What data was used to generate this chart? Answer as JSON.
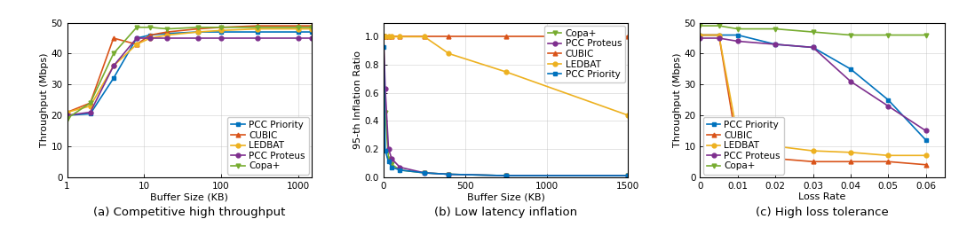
{
  "fig1": {
    "xlabel": "Buffer Size (KB)",
    "ylabel": "Throughput (Mbps)",
    "ylim": [
      0,
      50
    ],
    "yticks": [
      0,
      10,
      20,
      30,
      40,
      50
    ],
    "series": {
      "PCC Priority": {
        "x": [
          1,
          2,
          4,
          8,
          12,
          20,
          50,
          100,
          300,
          1000,
          1500
        ],
        "y": [
          20,
          20.5,
          32,
          45,
          46,
          46.5,
          47,
          47,
          47,
          47,
          47
        ],
        "color": "#0072BD",
        "marker": "s"
      },
      "CUBIC": {
        "x": [
          1,
          2,
          4,
          8,
          12,
          20,
          50,
          100,
          300,
          1000,
          1500
        ],
        "y": [
          21,
          24,
          45,
          43,
          46,
          47,
          48,
          48.5,
          49,
          49,
          49
        ],
        "color": "#D95319",
        "marker": "^"
      },
      "LEDBAT": {
        "x": [
          1,
          2,
          4,
          8,
          12,
          20,
          50,
          100,
          300,
          1000,
          1500
        ],
        "y": [
          21,
          23,
          36,
          43,
          45,
          46,
          47,
          47.5,
          48,
          48,
          48
        ],
        "color": "#EDB120",
        "marker": "o"
      },
      "PCC Proteus": {
        "x": [
          1,
          2,
          4,
          8,
          12,
          20,
          50,
          100,
          300,
          1000,
          1500
        ],
        "y": [
          20,
          21,
          36,
          45,
          45,
          45,
          45,
          45,
          45,
          45,
          45
        ],
        "color": "#7E2F8E",
        "marker": "o"
      },
      "Copa+": {
        "x": [
          1,
          2,
          4,
          8,
          12,
          20,
          50,
          100,
          300,
          1000,
          1500
        ],
        "y": [
          19,
          24,
          40,
          48.5,
          48.5,
          48,
          48.5,
          48.5,
          48.5,
          48.5,
          48.5
        ],
        "color": "#77AC30",
        "marker": "v"
      }
    },
    "legend_order": [
      "PCC Priority",
      "CUBIC",
      "LEDBAT",
      "PCC Proteus",
      "Copa+"
    ],
    "legend_loc": "lower right"
  },
  "fig2": {
    "xlabel": "Buffer Size (KB)",
    "ylabel": "95-th Inflation Ratio",
    "xlim": [
      0,
      1500
    ],
    "ylim": [
      0,
      1.1
    ],
    "xticks": [
      0,
      500,
      1000,
      1500
    ],
    "yticks": [
      0.0,
      0.2,
      0.4,
      0.6,
      0.8,
      1.0
    ],
    "series": {
      "Copa+": {
        "x": [
          0,
          10,
          30,
          50,
          100,
          250,
          400,
          750,
          1500
        ],
        "y": [
          1.0,
          0.46,
          0.13,
          0.09,
          0.05,
          0.03,
          0.02,
          0.01,
          0.01
        ],
        "color": "#77AC30",
        "marker": "v"
      },
      "PCC Proteus": {
        "x": [
          0,
          10,
          30,
          50,
          100,
          250,
          400,
          750,
          1500
        ],
        "y": [
          1.0,
          0.63,
          0.2,
          0.13,
          0.07,
          0.03,
          0.02,
          0.01,
          0.01
        ],
        "color": "#7E2F8E",
        "marker": "o"
      },
      "CUBIC": {
        "x": [
          0,
          10,
          30,
          50,
          100,
          250,
          400,
          750,
          1500
        ],
        "y": [
          1.0,
          1.0,
          1.0,
          1.0,
          1.0,
          1.0,
          1.0,
          1.0,
          1.0
        ],
        "color": "#D95319",
        "marker": "^"
      },
      "LEDBAT": {
        "x": [
          0,
          10,
          30,
          50,
          100,
          250,
          400,
          750,
          1500
        ],
        "y": [
          1.0,
          1.0,
          1.0,
          1.0,
          1.0,
          1.0,
          0.88,
          0.75,
          0.44
        ],
        "color": "#EDB120",
        "marker": "o"
      },
      "PCC Priority": {
        "x": [
          0,
          10,
          30,
          50,
          100,
          250,
          400,
          750,
          1500
        ],
        "y": [
          0.93,
          0.19,
          0.11,
          0.07,
          0.05,
          0.03,
          0.02,
          0.01,
          0.01
        ],
        "color": "#0072BD",
        "marker": "s"
      }
    },
    "legend_order": [
      "Copa+",
      "PCC Proteus",
      "CUBIC",
      "LEDBAT",
      "PCC Priority"
    ],
    "legend_loc": "upper right"
  },
  "fig3": {
    "xlabel": "Loss Rate",
    "ylabel": "Throughput (Mbps)",
    "xlim": [
      0,
      0.065
    ],
    "ylim": [
      0,
      50
    ],
    "xticks": [
      0,
      0.01,
      0.02,
      0.03,
      0.04,
      0.05,
      0.06
    ],
    "yticks": [
      0,
      10,
      20,
      30,
      40,
      50
    ],
    "series": {
      "PCC Priority": {
        "x": [
          0,
          0.005,
          0.01,
          0.02,
          0.03,
          0.04,
          0.05,
          0.06
        ],
        "y": [
          46,
          46,
          46,
          43,
          42,
          35,
          25,
          12
        ],
        "color": "#0072BD",
        "marker": "s"
      },
      "CUBIC": {
        "x": [
          0,
          0.005,
          0.01,
          0.02,
          0.03,
          0.04,
          0.05,
          0.06
        ],
        "y": [
          46,
          46,
          9,
          6,
          5,
          5,
          5,
          4
        ],
        "color": "#D95319",
        "marker": "^"
      },
      "LEDBAT": {
        "x": [
          0,
          0.005,
          0.01,
          0.02,
          0.03,
          0.04,
          0.05,
          0.06
        ],
        "y": [
          46,
          46,
          13,
          10,
          8.5,
          8,
          7,
          7
        ],
        "color": "#EDB120",
        "marker": "o"
      },
      "PCC Proteus": {
        "x": [
          0,
          0.005,
          0.01,
          0.02,
          0.03,
          0.04,
          0.05,
          0.06
        ],
        "y": [
          45,
          45,
          44,
          43,
          42,
          31,
          23,
          15
        ],
        "color": "#7E2F8E",
        "marker": "o"
      },
      "Copa+": {
        "x": [
          0,
          0.005,
          0.01,
          0.02,
          0.03,
          0.04,
          0.05,
          0.06
        ],
        "y": [
          49,
          49,
          48,
          48,
          47,
          46,
          46,
          46
        ],
        "color": "#77AC30",
        "marker": "v"
      }
    },
    "legend_order": [
      "PCC Priority",
      "CUBIC",
      "LEDBAT",
      "PCC Proteus",
      "Copa+"
    ],
    "legend_loc": "lower left"
  },
  "captions": [
    "(a) Competitive high throughput",
    "(b) Low latency inflation",
    "(c) High loss tolerance"
  ],
  "caption_fontsize": 9.5,
  "axis_label_fontsize": 8,
  "tick_fontsize": 7.5,
  "legend_fontsize": 7.5,
  "ms": 3.5,
  "lw": 1.2
}
